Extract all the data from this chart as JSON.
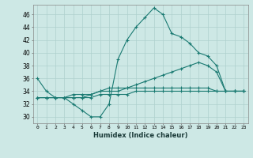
{
  "xlabel": "Humidex (Indice chaleur)",
  "background_color": "#cde8e5",
  "grid_color": "#aed0cd",
  "line_color": "#1a7a72",
  "xlim": [
    -0.5,
    23.5
  ],
  "ylim": [
    29,
    47.5
  ],
  "yticks": [
    30,
    32,
    34,
    36,
    38,
    40,
    42,
    44,
    46
  ],
  "xticks": [
    0,
    1,
    2,
    3,
    4,
    5,
    6,
    7,
    8,
    9,
    10,
    11,
    12,
    13,
    14,
    15,
    16,
    17,
    18,
    19,
    20,
    21,
    22,
    23
  ],
  "series": [
    {
      "x": [
        0,
        1,
        2,
        3,
        4,
        5,
        6,
        7,
        8,
        9,
        10,
        11,
        12,
        13,
        14,
        15,
        16,
        17,
        18,
        19,
        20,
        21,
        22,
        23
      ],
      "y": [
        36,
        34,
        33,
        33,
        32,
        31,
        30,
        30,
        32,
        39,
        42,
        44,
        45.5,
        47,
        46,
        43,
        42.5,
        41.5,
        40,
        39.5,
        38,
        34,
        34,
        34
      ]
    },
    {
      "x": [
        0,
        1,
        2,
        3,
        4,
        5,
        6,
        7,
        8,
        9,
        10,
        11,
        12,
        13,
        14,
        15,
        16,
        17,
        18,
        19,
        20,
        21,
        22,
        23
      ],
      "y": [
        33,
        33,
        33,
        33,
        33,
        33,
        33.5,
        34,
        34,
        34,
        34.5,
        35,
        35.5,
        36,
        36.5,
        37,
        37.5,
        38,
        38.5,
        38,
        37,
        34,
        34,
        34
      ]
    },
    {
      "x": [
        0,
        1,
        2,
        3,
        4,
        5,
        6,
        7,
        8,
        9,
        10,
        11,
        12,
        13,
        14,
        15,
        16,
        17,
        18,
        19,
        20,
        21,
        22,
        23
      ],
      "y": [
        33,
        33,
        33,
        33,
        33.5,
        33.5,
        33.5,
        34,
        34.5,
        34.5,
        34.5,
        34.5,
        34.5,
        34.5,
        34.5,
        34.5,
        34.5,
        34.5,
        34.5,
        34.5,
        34,
        34,
        34,
        34
      ]
    },
    {
      "x": [
        0,
        1,
        2,
        3,
        4,
        5,
        6,
        7,
        8,
        9,
        10,
        11,
        12,
        13,
        14,
        15,
        16,
        17,
        18,
        19,
        20,
        21,
        22,
        23
      ],
      "y": [
        33,
        33,
        33,
        33,
        33,
        33,
        33,
        33.5,
        33.5,
        33.5,
        33.5,
        34,
        34,
        34,
        34,
        34,
        34,
        34,
        34,
        34,
        34,
        34,
        34,
        34
      ]
    }
  ]
}
